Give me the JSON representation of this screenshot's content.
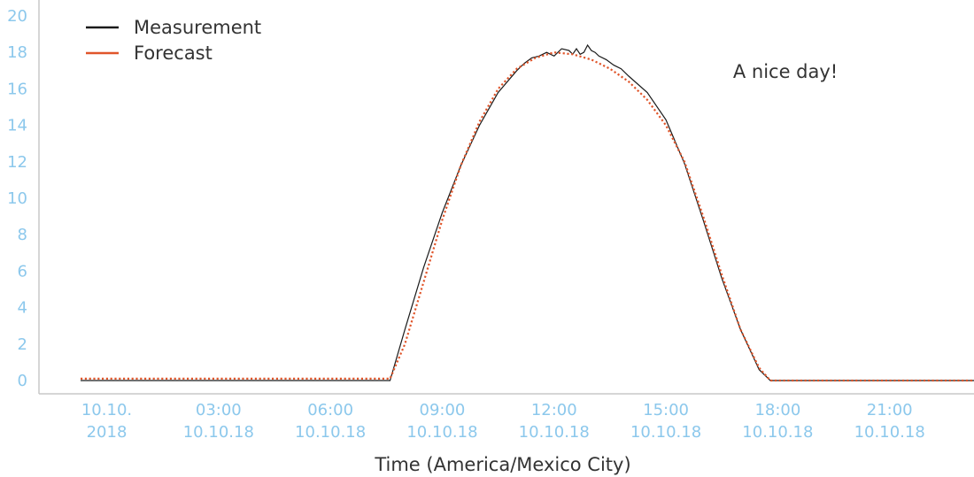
{
  "chart_data": {
    "type": "line",
    "title": "",
    "xlabel": "Time (America/Mexico City)",
    "ylabel": "",
    "ylim": [
      0,
      20
    ],
    "yticks": [
      0,
      2,
      4,
      6,
      8,
      10,
      12,
      14,
      16,
      18,
      20
    ],
    "xlim": [
      0,
      24
    ],
    "x_unit": "hours since 10.10.2018 00:00",
    "xticks": [
      {
        "x": 0,
        "line1": "10.10.",
        "line2": "2018"
      },
      {
        "x": 3,
        "line1": "03:00",
        "line2": "10.10.18"
      },
      {
        "x": 6,
        "line1": "06:00",
        "line2": "10.10.18"
      },
      {
        "x": 9,
        "line1": "09:00",
        "line2": "10.10.18"
      },
      {
        "x": 12,
        "line1": "12:00",
        "line2": "10.10.18"
      },
      {
        "x": 15,
        "line1": "15:00",
        "line2": "10.10.18"
      },
      {
        "x": 18,
        "line1": "18:00",
        "line2": "10.10.18"
      },
      {
        "x": 21,
        "line1": "21:00",
        "line2": "10.10.18"
      }
    ],
    "legend_position": "top-left",
    "grid": false,
    "series": [
      {
        "name": "Measurement",
        "color": "#1a1a1a",
        "style": "solid",
        "x": [
          -0.7,
          7.6,
          8.0,
          8.5,
          9.0,
          9.5,
          10.0,
          10.5,
          11.0,
          11.2,
          11.4,
          11.6,
          11.8,
          12.0,
          12.2,
          12.4,
          12.5,
          12.6,
          12.7,
          12.8,
          12.9,
          13.0,
          13.1,
          13.2,
          13.4,
          13.6,
          13.8,
          14.0,
          14.5,
          15.0,
          15.5,
          16.0,
          16.5,
          17.0,
          17.5,
          17.8,
          18.0,
          24.7
        ],
        "y": [
          0.0,
          0.0,
          2.8,
          6.2,
          9.2,
          11.8,
          14.0,
          15.8,
          17.0,
          17.4,
          17.7,
          17.8,
          18.0,
          17.8,
          18.2,
          18.1,
          17.9,
          18.2,
          17.9,
          18.0,
          18.4,
          18.1,
          18.0,
          17.8,
          17.6,
          17.3,
          17.1,
          16.7,
          15.8,
          14.3,
          11.9,
          8.8,
          5.6,
          2.8,
          0.6,
          0.0,
          0.0,
          0.0
        ]
      },
      {
        "name": "Forecast",
        "color": "#e0552a",
        "style": "dotted",
        "x": [
          -0.7,
          7.6,
          8.0,
          8.5,
          9.0,
          9.5,
          10.0,
          10.5,
          11.0,
          11.5,
          12.0,
          12.5,
          13.0,
          13.5,
          14.0,
          14.5,
          15.0,
          15.5,
          16.0,
          16.5,
          17.0,
          17.5,
          17.8,
          18.0,
          24.7
        ],
        "y": [
          0.1,
          0.1,
          2.0,
          5.4,
          8.8,
          11.8,
          14.2,
          16.0,
          17.1,
          17.7,
          18.0,
          17.9,
          17.6,
          17.1,
          16.4,
          15.4,
          14.0,
          12.0,
          9.0,
          5.8,
          2.8,
          0.7,
          0.0,
          0.0,
          0.0
        ]
      }
    ],
    "annotations": [
      {
        "text": "A nice day!",
        "x": 16.8,
        "y": 16.6
      }
    ]
  }
}
